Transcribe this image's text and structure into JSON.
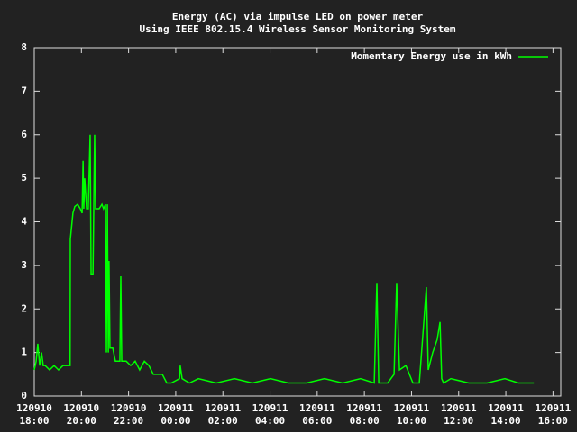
{
  "chart_data": {
    "type": "line",
    "title": "Energy (AC) via impulse LED on power meter",
    "subtitle": "Using IEEE 802.15.4 Wireless Sensor Monitoring System",
    "legend": "top-right",
    "series": [
      {
        "name": "Momentary Energy use in kWh",
        "color": "#00ff00",
        "x": [
          0,
          0.08,
          0.15,
          0.23,
          0.31,
          0.38,
          0.46,
          0.65,
          0.84,
          1.03,
          1.22,
          1.41,
          1.52,
          1.53,
          1.64,
          1.72,
          1.84,
          1.95,
          2.03,
          2.07,
          2.1,
          2.14,
          2.22,
          2.29,
          2.37,
          2.41,
          2.49,
          2.56,
          2.6,
          2.75,
          2.87,
          2.94,
          3.02,
          3.06,
          3.1,
          3.14,
          3.17,
          3.21,
          3.33,
          3.44,
          3.63,
          3.67,
          3.71,
          3.9,
          4.09,
          4.28,
          4.47,
          4.67,
          4.86,
          5.05,
          5.24,
          5.43,
          5.62,
          5.81,
          6.16,
          6.19,
          6.27,
          6.58,
          6.96,
          7.72,
          8.49,
          9.25,
          10.02,
          10.78,
          11.55,
          12.31,
          13.08,
          13.84,
          14.42,
          14.53,
          14.61,
          14.99,
          15.26,
          15.37,
          15.49,
          15.76,
          16.06,
          16.33,
          16.63,
          16.71,
          16.9,
          17.09,
          17.21,
          17.28,
          17.36,
          17.67,
          18.43,
          19.2,
          19.96,
          20.54,
          21.19
        ],
        "values": [
          0.6,
          0.8,
          1.2,
          0.7,
          1.0,
          0.7,
          0.7,
          0.6,
          0.7,
          0.6,
          0.7,
          0.7,
          0.7,
          3.6,
          4.2,
          4.35,
          4.4,
          4.3,
          4.2,
          5.4,
          4.3,
          5.0,
          4.3,
          4.3,
          6.0,
          2.8,
          2.8,
          6.0,
          4.3,
          4.3,
          4.4,
          4.3,
          4.4,
          1.0,
          4.4,
          1.0,
          3.1,
          1.1,
          1.1,
          0.8,
          0.8,
          2.75,
          0.8,
          0.8,
          0.7,
          0.8,
          0.6,
          0.8,
          0.7,
          0.5,
          0.5,
          0.5,
          0.3,
          0.3,
          0.4,
          0.7,
          0.4,
          0.3,
          0.4,
          0.3,
          0.4,
          0.3,
          0.4,
          0.3,
          0.3,
          0.4,
          0.3,
          0.4,
          0.3,
          2.6,
          0.3,
          0.3,
          0.5,
          2.6,
          0.6,
          0.7,
          0.3,
          0.3,
          2.5,
          0.6,
          1.0,
          1.3,
          1.7,
          0.4,
          0.3,
          0.4,
          0.3,
          0.3,
          0.4,
          0.3,
          0.3
        ]
      }
    ],
    "xlim": [
      0,
      22.33
    ],
    "xticks": [
      {
        "value": 0,
        "label": "120910 18:00"
      },
      {
        "value": 2,
        "label": "120910 20:00"
      },
      {
        "value": 4,
        "label": "120910 22:00"
      },
      {
        "value": 6,
        "label": "120911 00:00"
      },
      {
        "value": 8,
        "label": "120911 02:00"
      },
      {
        "value": 10,
        "label": "120911 04:00"
      },
      {
        "value": 12,
        "label": "120911 06:00"
      },
      {
        "value": 14,
        "label": "120911 08:00"
      },
      {
        "value": 16,
        "label": "120911 10:00"
      },
      {
        "value": 18,
        "label": "120911 12:00"
      },
      {
        "value": 20,
        "label": "120911 14:00"
      },
      {
        "value": 22,
        "label": "120911 16:00"
      }
    ],
    "ylim": [
      0,
      8
    ],
    "yticks": [
      0,
      1,
      2,
      3,
      4,
      5,
      6,
      7,
      8
    ]
  }
}
